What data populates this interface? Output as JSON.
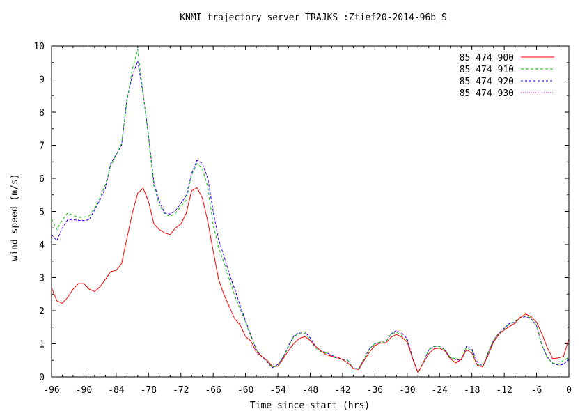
{
  "chart_data": {
    "type": "line",
    "title": "KNMI trajectory server TRAJKS :Ztief20-2014-96b_S",
    "xlabel": "Time since start (hrs)",
    "ylabel": "wind speed (m/s)",
    "xlim": [
      -96,
      0
    ],
    "ylim": [
      0,
      10
    ],
    "xticks": [
      -96,
      -90,
      -84,
      -78,
      -72,
      -66,
      -60,
      -54,
      -48,
      -42,
      -36,
      -30,
      -24,
      -18,
      -12,
      -6,
      0
    ],
    "yticks": [
      0,
      1,
      2,
      3,
      4,
      5,
      6,
      7,
      8,
      9,
      10
    ],
    "grid": false,
    "legend_position": "top-right",
    "x": [
      -96,
      -95,
      -94,
      -93,
      -92,
      -91,
      -90,
      -89,
      -88,
      -87,
      -86,
      -85,
      -84,
      -83,
      -82,
      -81,
      -80,
      -79,
      -78,
      -77,
      -76,
      -75,
      -74,
      -73,
      -72,
      -71,
      -70,
      -69,
      -68,
      -67,
      -66,
      -65,
      -64,
      -63,
      -62,
      -61,
      -60,
      -59,
      -58,
      -57,
      -56,
      -55,
      -54,
      -53,
      -52,
      -51,
      -50,
      -49,
      -48,
      -47,
      -46,
      -45,
      -44,
      -43,
      -42,
      -41,
      -40,
      -39,
      -38,
      -37,
      -36,
      -35,
      -34,
      -33,
      -32,
      -31,
      -30,
      -29,
      -28,
      -27,
      -26,
      -25,
      -24,
      -23,
      -22,
      -21,
      -20,
      -19,
      -18,
      -17,
      -16,
      -15,
      -14,
      -13,
      -12,
      -11,
      -10,
      -9,
      -8,
      -7,
      -6,
      -5,
      -4,
      -3,
      -2,
      -1,
      0
    ],
    "series": [
      {
        "name": "85 474 900",
        "color": "#ff0000",
        "dash": "",
        "values": [
          2.7,
          2.3,
          2.22,
          2.4,
          2.65,
          2.82,
          2.82,
          2.65,
          2.58,
          2.72,
          2.95,
          3.18,
          3.22,
          3.42,
          4.2,
          4.95,
          5.55,
          5.7,
          5.3,
          4.62,
          4.45,
          4.35,
          4.3,
          4.5,
          4.62,
          4.95,
          5.62,
          5.72,
          5.4,
          4.7,
          3.8,
          2.95,
          2.48,
          2.12,
          1.75,
          1.57,
          1.22,
          1.08,
          0.75,
          0.62,
          0.5,
          0.32,
          0.32,
          0.55,
          0.8,
          1.02,
          1.16,
          1.22,
          1.1,
          0.92,
          0.78,
          0.67,
          0.62,
          0.6,
          0.52,
          0.42,
          0.25,
          0.22,
          0.5,
          0.75,
          0.95,
          1.02,
          1.02,
          1.2,
          1.28,
          1.2,
          1.05,
          0.55,
          0.13,
          0.42,
          0.7,
          0.85,
          0.87,
          0.78,
          0.55,
          0.42,
          0.52,
          0.82,
          0.72,
          0.35,
          0.3,
          0.65,
          1.05,
          1.28,
          1.42,
          1.52,
          1.62,
          1.8,
          1.9,
          1.82,
          1.65,
          1.3,
          0.88,
          0.55,
          0.57,
          0.62,
          1.15
        ]
      },
      {
        "name": "85 474 910",
        "color": "#00c000",
        "dash": "4,3",
        "values": [
          4.78,
          4.45,
          4.75,
          4.95,
          4.88,
          4.82,
          4.82,
          4.87,
          5.1,
          5.42,
          5.8,
          6.4,
          6.7,
          7.05,
          8.35,
          9.3,
          9.9,
          8.55,
          7.25,
          5.75,
          5.2,
          4.92,
          4.85,
          4.95,
          5.15,
          5.35,
          6.1,
          6.45,
          6.28,
          5.75,
          4.6,
          3.9,
          3.45,
          2.95,
          2.45,
          2.05,
          1.65,
          1.22,
          0.82,
          0.62,
          0.48,
          0.28,
          0.35,
          0.58,
          0.92,
          1.22,
          1.32,
          1.32,
          1.12,
          0.88,
          0.75,
          0.72,
          0.62,
          0.55,
          0.52,
          0.5,
          0.25,
          0.25,
          0.55,
          0.85,
          1.0,
          1.05,
          1.05,
          1.3,
          1.35,
          1.25,
          1.1,
          0.55,
          0.12,
          0.45,
          0.82,
          0.92,
          0.92,
          0.82,
          0.58,
          0.55,
          0.52,
          0.9,
          0.8,
          0.38,
          0.32,
          0.72,
          1.1,
          1.3,
          1.45,
          1.6,
          1.68,
          1.8,
          1.85,
          1.78,
          1.55,
          0.95,
          0.58,
          0.42,
          0.38,
          0.5,
          0.58
        ]
      },
      {
        "name": "85 474 920",
        "color": "#0000ff",
        "dash": "3,3",
        "values": [
          4.3,
          4.12,
          4.5,
          4.75,
          4.75,
          4.73,
          4.72,
          4.75,
          5.05,
          5.35,
          5.7,
          6.45,
          6.72,
          7.0,
          8.4,
          9.1,
          9.55,
          8.55,
          7.3,
          5.85,
          5.3,
          4.95,
          4.92,
          5.02,
          5.25,
          5.48,
          6.15,
          6.55,
          6.45,
          6.0,
          5.0,
          4.15,
          3.65,
          3.1,
          2.65,
          2.15,
          1.7,
          1.25,
          0.82,
          0.62,
          0.45,
          0.28,
          0.38,
          0.6,
          0.95,
          1.25,
          1.35,
          1.36,
          1.18,
          0.92,
          0.78,
          0.74,
          0.65,
          0.56,
          0.53,
          0.5,
          0.25,
          0.25,
          0.55,
          0.85,
          1.0,
          1.05,
          1.05,
          1.3,
          1.4,
          1.32,
          1.15,
          0.57,
          0.12,
          0.45,
          0.82,
          0.92,
          0.92,
          0.82,
          0.58,
          0.52,
          0.5,
          0.92,
          0.85,
          0.45,
          0.32,
          0.72,
          1.1,
          1.32,
          1.48,
          1.62,
          1.65,
          1.8,
          1.82,
          1.75,
          1.55,
          0.95,
          0.6,
          0.4,
          0.36,
          0.37,
          0.55
        ]
      },
      {
        "name": "85 474 930",
        "color": "#ff00ff",
        "dash": "1,2",
        "values": [
          4.3,
          4.12,
          4.5,
          4.75,
          4.75,
          4.73,
          4.72,
          4.75,
          5.05,
          5.35,
          5.7,
          6.45,
          6.72,
          7.0,
          8.4,
          9.1,
          9.55,
          8.55,
          7.3,
          5.85,
          5.3,
          4.95,
          4.92,
          5.02,
          5.25,
          5.48,
          6.15,
          6.55,
          6.45,
          6.0,
          5.0,
          4.15,
          3.65,
          3.1,
          2.65,
          2.15,
          1.7,
          1.25,
          0.82,
          0.62,
          0.45,
          0.28,
          0.38,
          0.6,
          0.95,
          1.25,
          1.35,
          1.36,
          1.18,
          0.92,
          0.78,
          0.74,
          0.65,
          0.56,
          0.53,
          0.5,
          0.25,
          0.25,
          0.55,
          0.85,
          1.0,
          1.05,
          1.05,
          1.3,
          1.4,
          1.32,
          1.15,
          0.57,
          0.12,
          0.45,
          0.82,
          0.92,
          0.92,
          0.82,
          0.58,
          0.52,
          0.5,
          0.92,
          0.85,
          0.45,
          0.32,
          0.72,
          1.1,
          1.32,
          1.48,
          1.62,
          1.65,
          1.8,
          1.82,
          1.75,
          1.55,
          0.95,
          0.6,
          0.4,
          0.36,
          0.37,
          0.55
        ]
      }
    ]
  }
}
